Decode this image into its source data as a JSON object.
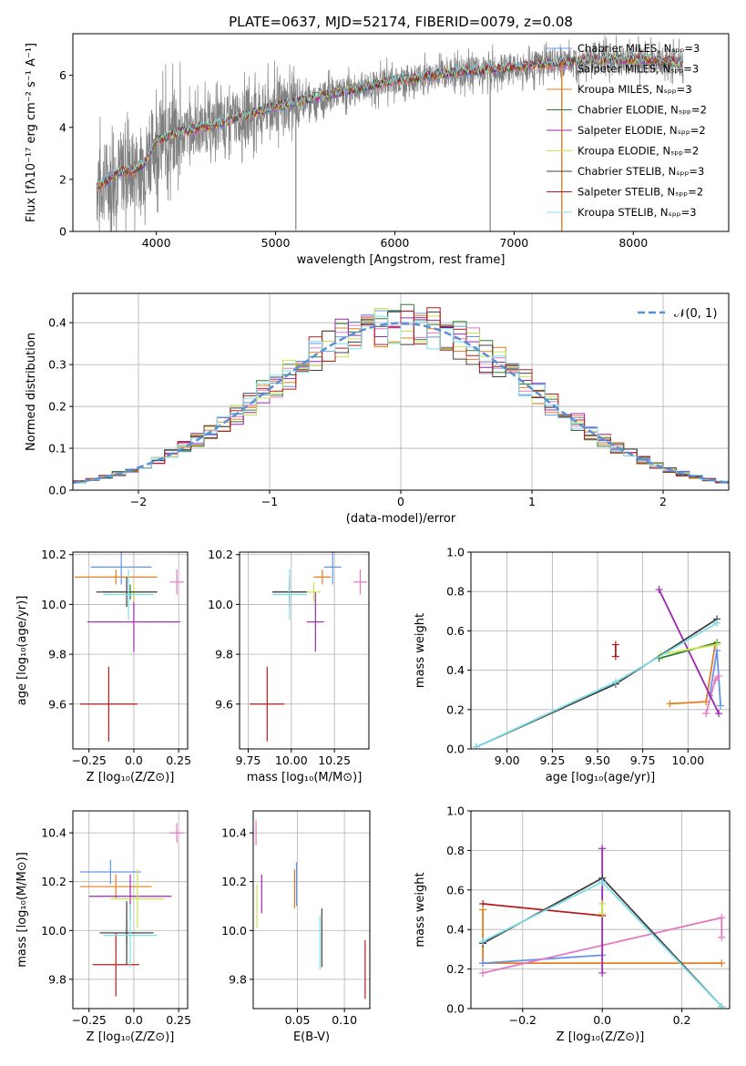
{
  "figure_title": "PLATE=0637, MJD=52174, FIBERID=0079, z=0.08",
  "chart_data": [
    {
      "id": "spectrum",
      "type": "line",
      "title": "PLATE=0637, MJD=52174, FIBERID=0079, z=0.08",
      "xlabel": "wavelength [Angstrom, rest frame]",
      "ylabel": "Flux [fλ10⁻¹⁷ erg cm⁻² s⁻¹ A⁻¹]",
      "xlim": [
        3300,
        8800
      ],
      "ylim": [
        0,
        7.6
      ],
      "xticks": [
        4000,
        5000,
        6000,
        7000,
        8000
      ],
      "yticks": [
        0,
        2,
        4,
        6
      ],
      "grid": false,
      "legend_position": "right",
      "legend": [
        {
          "label": "Chabrier MILES, Nₛₚₚ=3",
          "color": "#6495ed"
        },
        {
          "label": "Salpeter MILES, Nₛₚₚ=3",
          "color": "#e377c2"
        },
        {
          "label": "Kroupa MILES, Nₛₚₚ=3",
          "color": "#e87c1e"
        },
        {
          "label": "Chabrier ELODIE, Nₛₚₚ=2",
          "color": "#2e7d32"
        },
        {
          "label": "Salpeter ELODIE, Nₛₚₚ=2",
          "color": "#9c27b0"
        },
        {
          "label": "Kroupa ELODIE, Nₛₚₚ=2",
          "color": "#c8e64b"
        },
        {
          "label": "Chabrier STELIB, Nₛₚₚ=3",
          "color": "#404040"
        },
        {
          "label": "Salpeter STELIB, Nₛₚₚ=2",
          "color": "#b71c1c"
        },
        {
          "label": "Kroupa STELIB, Nₛₚₚ=3",
          "color": "#80deea"
        }
      ],
      "continuum": [
        [
          3500,
          1.7
        ],
        [
          3600,
          2.0
        ],
        [
          3700,
          2.3
        ],
        [
          3800,
          2.3
        ],
        [
          3900,
          2.6
        ],
        [
          4000,
          3.5
        ],
        [
          4200,
          3.8
        ],
        [
          4500,
          4.1
        ],
        [
          5000,
          4.8
        ],
        [
          5500,
          5.3
        ],
        [
          6000,
          5.8
        ],
        [
          6500,
          6.1
        ],
        [
          7000,
          6.3
        ],
        [
          7400,
          6.5
        ],
        [
          7600,
          6.6
        ],
        [
          8000,
          6.6
        ],
        [
          8400,
          6.5
        ]
      ],
      "dip_lines": [
        [
          5170,
          0.05
        ],
        [
          5830,
          4.9
        ],
        [
          6800,
          0.0
        ],
        [
          7400,
          0.0
        ]
      ]
    },
    {
      "id": "residual_hist",
      "type": "line",
      "xlabel": "(data-model)/error",
      "ylabel": "Normed distribution",
      "xlim": [
        -2.5,
        2.5
      ],
      "ylim": [
        0,
        0.47
      ],
      "xticks": [
        -2,
        -1,
        0,
        1,
        2
      ],
      "yticks": [
        0.0,
        0.1,
        0.2,
        0.3,
        0.4
      ],
      "grid": true,
      "legend_position": "top-right",
      "legend": [
        {
          "label": "𝒩(0, 1)",
          "color": "#5b8fd6",
          "style": "dashed"
        }
      ]
    },
    {
      "id": "age_vs_Z",
      "type": "scatter",
      "xlabel": "Z [log₁₀(Z/Z⊙)]",
      "ylabel": "age  [log₁₀(age/yr)]",
      "xlim": [
        -0.34,
        0.3
      ],
      "ylim": [
        9.42,
        10.21
      ],
      "xticks": [
        -0.25,
        0.0,
        0.25
      ],
      "yticks": [
        9.6,
        9.8,
        10.0,
        10.2
      ],
      "grid": true,
      "points": [
        {
          "x": -0.07,
          "y": 10.15,
          "xerr": 0.17,
          "yerr": 0.07,
          "color": "#6495ed"
        },
        {
          "x": 0.24,
          "y": 10.09,
          "xerr": 0.04,
          "yerr": 0.05,
          "color": "#e377c2"
        },
        {
          "x": -0.1,
          "y": 10.11,
          "xerr": 0.23,
          "yerr": 0.03,
          "color": "#e87c1e"
        },
        {
          "x": -0.02,
          "y": 10.05,
          "xerr": 0.15,
          "yerr": 0.03,
          "color": "#2e7d32"
        },
        {
          "x": 0.0,
          "y": 9.93,
          "xerr": 0.26,
          "yerr": 0.12,
          "color": "#9c27b0"
        },
        {
          "x": 0.0,
          "y": 10.05,
          "xerr": 0.13,
          "yerr": 0.04,
          "color": "#c8e64b"
        },
        {
          "x": -0.04,
          "y": 10.05,
          "xerr": 0.17,
          "yerr": 0.06,
          "color": "#404040"
        },
        {
          "x": -0.14,
          "y": 9.6,
          "xerr": 0.16,
          "yerr": 0.15,
          "color": "#b71c1c"
        },
        {
          "x": -0.03,
          "y": 10.04,
          "xerr": 0.14,
          "yerr": 0.1,
          "color": "#80deea"
        }
      ]
    },
    {
      "id": "age_vs_mass",
      "type": "scatter",
      "xlabel": "mass [log₁₀(M/M⊙)]",
      "ylabel": "",
      "xlim": [
        9.7,
        10.45
      ],
      "ylim": [
        9.42,
        10.21
      ],
      "xticks": [
        9.75,
        10.0,
        10.25
      ],
      "yticks": [
        9.6,
        9.8,
        10.0,
        10.2
      ],
      "grid": true,
      "points": [
        {
          "x": 10.24,
          "y": 10.15,
          "xerr": 0.05,
          "yerr": 0.07,
          "color": "#6495ed"
        },
        {
          "x": 10.4,
          "y": 10.09,
          "xerr": 0.04,
          "yerr": 0.05,
          "color": "#e377c2"
        },
        {
          "x": 10.18,
          "y": 10.11,
          "xerr": 0.05,
          "yerr": 0.03,
          "color": "#e87c1e"
        },
        {
          "x": 9.99,
          "y": 10.05,
          "xerr": 0.1,
          "yerr": 0.03,
          "color": "#2e7d32"
        },
        {
          "x": 10.14,
          "y": 9.93,
          "xerr": 0.05,
          "yerr": 0.12,
          "color": "#9c27b0"
        },
        {
          "x": 10.13,
          "y": 10.05,
          "xerr": 0.04,
          "yerr": 0.04,
          "color": "#c8e64b"
        },
        {
          "x": 9.99,
          "y": 10.05,
          "xerr": 0.1,
          "yerr": 0.06,
          "color": "#404040"
        },
        {
          "x": 9.86,
          "y": 9.6,
          "xerr": 0.1,
          "yerr": 0.15,
          "color": "#b71c1c"
        },
        {
          "x": 9.99,
          "y": 10.04,
          "xerr": 0.1,
          "yerr": 0.1,
          "color": "#80deea"
        }
      ]
    },
    {
      "id": "mass_weight_vs_age",
      "type": "line",
      "xlabel": "age  [log₁₀(age/yr)]",
      "ylabel": "mass weight",
      "xlim": [
        8.8,
        10.23
      ],
      "ylim": [
        0.0,
        1.0
      ],
      "xticks": [
        9.0,
        9.25,
        9.5,
        9.75,
        10.0
      ],
      "yticks": [
        0.0,
        0.2,
        0.4,
        0.6,
        0.8,
        1.0
      ],
      "grid": true,
      "series": [
        {
          "color": "#e87c1e",
          "points": [
            [
              9.9,
              0.23
            ],
            [
              10.1,
              0.24
            ],
            [
              10.15,
              0.53
            ]
          ]
        },
        {
          "color": "#6495ed",
          "points": [
            [
              10.12,
              0.27
            ],
            [
              10.16,
              0.5
            ],
            [
              10.18,
              0.22
            ]
          ]
        },
        {
          "color": "#e377c2",
          "points": [
            [
              10.1,
              0.18
            ],
            [
              10.15,
              0.35
            ],
            [
              10.17,
              0.37
            ]
          ]
        },
        {
          "color": "#9c27b0",
          "points": [
            [
              9.84,
              0.81
            ],
            [
              10.17,
              0.18
            ]
          ]
        },
        {
          "color": "#b71c1c",
          "points": [
            [
              9.6,
              0.47
            ],
            [
              9.6,
              0.53
            ]
          ]
        },
        {
          "color": "#2e7d32",
          "points": [
            [
              9.84,
              0.46
            ],
            [
              10.16,
              0.54
            ]
          ]
        },
        {
          "color": "#c8e64b",
          "points": [
            [
              9.85,
              0.48
            ],
            [
              10.16,
              0.53
            ]
          ]
        },
        {
          "color": "#404040",
          "points": [
            [
              8.83,
              0.01
            ],
            [
              9.6,
              0.33
            ],
            [
              10.16,
              0.66
            ]
          ]
        },
        {
          "color": "#80deea",
          "points": [
            [
              8.83,
              0.01
            ],
            [
              9.6,
              0.34
            ],
            [
              10.16,
              0.64
            ]
          ]
        }
      ]
    },
    {
      "id": "mass_vs_Z",
      "type": "scatter",
      "xlabel": "Z [log₁₀(Z/Z⊙)]",
      "ylabel": "mass [log₁₀(M/M⊙)]",
      "xlim": [
        -0.34,
        0.3
      ],
      "ylim": [
        9.68,
        10.49
      ],
      "xticks": [
        -0.25,
        0.0,
        0.25
      ],
      "yticks": [
        9.8,
        10.0,
        10.2,
        10.4
      ],
      "grid": true,
      "points": [
        {
          "x": -0.13,
          "y": 10.24,
          "xerr": 0.17,
          "yerr": 0.05,
          "color": "#6495ed"
        },
        {
          "x": 0.24,
          "y": 10.4,
          "xerr": 0.04,
          "yerr": 0.04,
          "color": "#e377c2"
        },
        {
          "x": -0.1,
          "y": 10.18,
          "xerr": 0.2,
          "yerr": 0.05,
          "color": "#e87c1e"
        },
        {
          "x": -0.04,
          "y": 9.99,
          "xerr": 0.15,
          "yerr": 0.05,
          "color": "#2e7d32"
        },
        {
          "x": -0.02,
          "y": 10.14,
          "xerr": 0.23,
          "yerr": 0.09,
          "color": "#9c27b0"
        },
        {
          "x": 0.02,
          "y": 10.13,
          "xerr": 0.15,
          "yerr": 0.12,
          "color": "#c8e64b"
        },
        {
          "x": -0.04,
          "y": 9.99,
          "xerr": 0.15,
          "yerr": 0.13,
          "color": "#404040"
        },
        {
          "x": -0.1,
          "y": 9.86,
          "xerr": 0.13,
          "yerr": 0.13,
          "color": "#b71c1c"
        },
        {
          "x": -0.02,
          "y": 9.98,
          "xerr": 0.15,
          "yerr": 0.13,
          "color": "#80deea"
        }
      ]
    },
    {
      "id": "mass_vs_ebv",
      "type": "scatter",
      "xlabel": "E(B-V)",
      "ylabel": "",
      "xlim": [
        0.003,
        0.127
      ],
      "ylim": [
        9.68,
        10.49
      ],
      "xticks": [
        0.05,
        0.1
      ],
      "yticks": [
        9.8,
        10.0,
        10.2,
        10.4
      ],
      "grid": true,
      "points": [
        {
          "x": 0.006,
          "y": 10.4,
          "xerr": 0,
          "yerr": 0.05,
          "color": "#e377c2"
        },
        {
          "x": 0.007,
          "y": 10.1,
          "xerr": 0,
          "yerr": 0.09,
          "color": "#c8e64b"
        },
        {
          "x": 0.012,
          "y": 10.15,
          "xerr": 0,
          "yerr": 0.08,
          "color": "#9c27b0"
        },
        {
          "x": 0.047,
          "y": 10.17,
          "xerr": 0,
          "yerr": 0.08,
          "color": "#e87c1e"
        },
        {
          "x": 0.049,
          "y": 10.19,
          "xerr": 0,
          "yerr": 0.09,
          "color": "#6495ed"
        },
        {
          "x": 0.074,
          "y": 9.95,
          "xerr": 0,
          "yerr": 0.11,
          "color": "#80deea"
        },
        {
          "x": 0.076,
          "y": 9.97,
          "xerr": 0,
          "yerr": 0.12,
          "color": "#404040"
        },
        {
          "x": 0.122,
          "y": 9.84,
          "xerr": 0,
          "yerr": 0.12,
          "color": "#b71c1c"
        }
      ]
    },
    {
      "id": "mass_weight_vs_Z",
      "type": "line",
      "xlabel": "Z [log₁₀(Z/Z⊙)]",
      "ylabel": "mass weight",
      "xlim": [
        -0.33,
        0.32
      ],
      "ylim": [
        0.0,
        1.0
      ],
      "xticks": [
        -0.2,
        0.0,
        0.2
      ],
      "yticks": [
        0.0,
        0.2,
        0.4,
        0.6,
        0.8,
        1.0
      ],
      "grid": true,
      "series": [
        {
          "color": "#b71c1c",
          "points": [
            [
              -0.3,
              0.53
            ],
            [
              0.0,
              0.47
            ]
          ]
        },
        {
          "color": "#e87c1e",
          "points": [
            [
              -0.3,
              0.5
            ],
            [
              -0.3,
              0.23
            ],
            [
              0.3,
              0.23
            ]
          ]
        },
        {
          "color": "#6495ed",
          "points": [
            [
              -0.3,
              0.23
            ],
            [
              0.0,
              0.27
            ]
          ]
        },
        {
          "color": "#e377c2",
          "points": [
            [
              -0.3,
              0.18
            ],
            [
              0.3,
              0.46
            ],
            [
              0.3,
              0.36
            ]
          ]
        },
        {
          "color": "#9c27b0",
          "points": [
            [
              0.0,
              0.18
            ],
            [
              0.0,
              0.81
            ]
          ]
        },
        {
          "color": "#c8e64b",
          "points": [
            [
              0.0,
              0.48
            ],
            [
              0.0,
              0.53
            ]
          ]
        },
        {
          "color": "#404040",
          "points": [
            [
              -0.3,
              0.33
            ],
            [
              0.0,
              0.66
            ],
            [
              0.3,
              0.01
            ]
          ]
        },
        {
          "color": "#80deea",
          "points": [
            [
              -0.3,
              0.34
            ],
            [
              0.0,
              0.64
            ],
            [
              0.3,
              0.01
            ]
          ]
        }
      ]
    }
  ]
}
